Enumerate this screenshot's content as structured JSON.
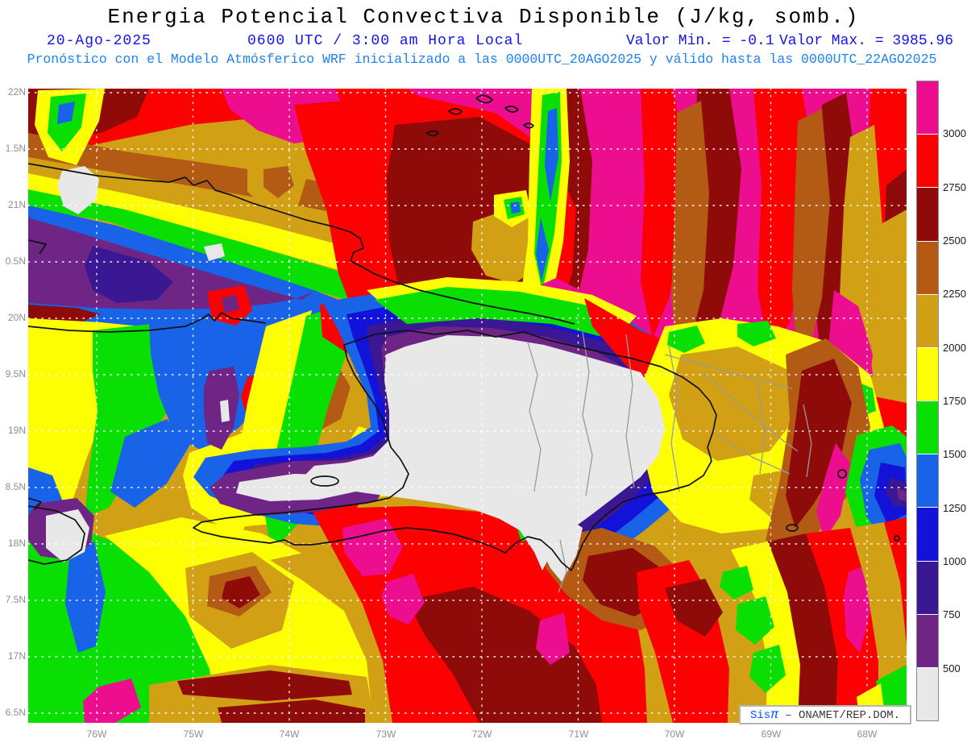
{
  "header": {
    "title": "Energia Potencial Convectiva Disponible (J/kg, somb.)",
    "date": "20-Ago-2025",
    "time_line": "0600 UTC / 3:00 am Hora Local",
    "valor_min": "Valor Min. = -0.1",
    "valor_max": "Valor Max. = 3985.96",
    "forecast_line": "Pronóstico con el Modelo Atmósferico WRF inicializado a las 0000UTC_20AGO2025 y válido hasta las  0000UTC_22AGO2025"
  },
  "axes": {
    "y_ticks": [
      "22N",
      "1.5N",
      "21N",
      "0.5N",
      "20N",
      "9.5N",
      "19N",
      "8.5N",
      "18N",
      "7.5N",
      "17N",
      "6.5N"
    ],
    "x_ticks": [
      "76W",
      "75W",
      "74W",
      "73W",
      "72W",
      "71W",
      "70W",
      "69W",
      "68W"
    ]
  },
  "colorbar": {
    "levels": [
      "3000",
      "2750",
      "2500",
      "2250",
      "2000",
      "1750",
      "1500",
      "1250",
      "1000",
      "750",
      "500"
    ],
    "colors": [
      "#EC0E8E",
      "#FB0101",
      "#8F0B09",
      "#B35B14",
      "#D2A014",
      "#FEFE03",
      "#0ADF04",
      "#1863E8",
      "#1212D8",
      "#3A1793",
      "#6F2585",
      "#E8E8E8"
    ]
  },
  "branding": {
    "app": "Sis",
    "pi": "π",
    "org": "– ONAMET/REP.DOM."
  },
  "chart_data": {
    "type": "heatmap",
    "title": "Energia Potencial Convectiva Disponible (J/kg, somb.)",
    "variable": "CAPE (J/kg), sombreado",
    "valid_time": "20-Ago-2025 0600 UTC / 3:00 am Hora Local",
    "model": "WRF inicializado 0000UTC_20AGO2025, válido hasta 0000UTC_22AGO2025",
    "value_min": -0.1,
    "value_max": 3985.96,
    "x_tick_labels": [
      "76W",
      "75W",
      "74W",
      "73W",
      "72W",
      "71W",
      "70W",
      "69W",
      "68W"
    ],
    "y_tick_labels": [
      "22N",
      "21.5N",
      "21N",
      "20.5N",
      "20N",
      "19.5N",
      "19N",
      "18.5N",
      "18N",
      "17.5N",
      "17N",
      "16.5N"
    ],
    "grid": "white dotted lat/lon grid, 0.5° lat / 1° lon",
    "legend_position": "right vertical colorbar",
    "contour_levels_jkg": [
      500,
      750,
      1000,
      1250,
      1500,
      1750,
      2000,
      2250,
      2500,
      2750,
      3000
    ],
    "palette": [
      {
        "range": "> 3000",
        "color": "#EC0E8E"
      },
      {
        "range": "2750-3000",
        "color": "#FB0101"
      },
      {
        "range": "2500-2750",
        "color": "#8F0B09"
      },
      {
        "range": "2250-2500",
        "color": "#B35B14"
      },
      {
        "range": "2000-2250",
        "color": "#D2A014"
      },
      {
        "range": "1750-2000",
        "color": "#FEFE03"
      },
      {
        "range": "1500-1750",
        "color": "#0ADF04"
      },
      {
        "range": "1250-1500",
        "color": "#1863E8"
      },
      {
        "range": "1000-1250",
        "color": "#1212D8"
      },
      {
        "range": "750-1000",
        "color": "#3A1793"
      },
      {
        "range": "500-750",
        "color": "#6F2585"
      },
      {
        "range": "< 500",
        "color": "#E8E8E8"
      }
    ],
    "regions_summary": [
      "Valores < 500 J/kg (blanco) sobre el interior de La Española y franjas púrpura/azul alrededor",
      "Máximos > 3000 J/kg (magenta) en el Atlántico al norte y noreste del dominio",
      "Núcleos rojos/vinotinto 2500-3000 J/kg en el Caribe al sur de La Española",
      "Mínimos azul/púrpura sobre el este de Cuba y al este del dominio cerca de 68W 18.5N",
      "Campos verde/amarillo 1500-2000 J/kg al suroeste (área de Jamaica) y este de RD"
    ]
  }
}
